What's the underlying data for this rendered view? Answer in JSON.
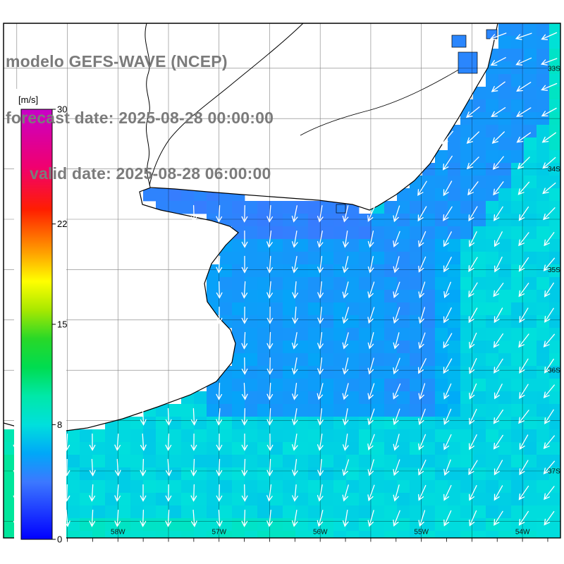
{
  "header": {
    "title": "modelo GEFS-WAVE (NCEP)",
    "forecast_line": "forecast date: 2025-08-28 00:00:00",
    "valid_line": "valid date: 2025-08-28 06:00:00",
    "text_color": "#7b7b7b"
  },
  "colorbar": {
    "unit_label": "[m/s]",
    "min": 0,
    "max": 30,
    "ticks": [
      {
        "value": 30,
        "label": "30"
      },
      {
        "value": 22,
        "label": "22"
      },
      {
        "value": 15,
        "label": "15"
      },
      {
        "value": 8,
        "label": "8"
      },
      {
        "value": 0,
        "label": "0"
      }
    ],
    "stops": [
      {
        "v": 0,
        "c": "#0000ff"
      },
      {
        "v": 4,
        "c": "#3c78ff"
      },
      {
        "v": 6,
        "c": "#00a8f8"
      },
      {
        "v": 8,
        "c": "#00e0dc"
      },
      {
        "v": 10,
        "c": "#00e8a8"
      },
      {
        "v": 12,
        "c": "#00dc50"
      },
      {
        "v": 14,
        "c": "#28d828"
      },
      {
        "v": 16,
        "c": "#a8e800"
      },
      {
        "v": 18,
        "c": "#ffff00"
      },
      {
        "v": 20,
        "c": "#ffa000"
      },
      {
        "v": 23,
        "c": "#ff1e00"
      },
      {
        "v": 26,
        "c": "#f00070"
      },
      {
        "v": 30,
        "c": "#c800c8"
      }
    ]
  },
  "map": {
    "right_axis_labels": [
      "33S",
      "34S",
      "35S",
      "36S",
      "37S"
    ],
    "bottom_axis_labels": [
      "58W",
      "57W",
      "56W",
      "55W",
      "54W"
    ],
    "land_color": "#ffffff",
    "coast_color": "#000000",
    "grid_color": "#000000",
    "arrow_color": "#ffffff",
    "sea_state": {
      "base_value_ms": 7.6,
      "estuary_value_ms": 4.4,
      "nearshore_value_ms": 5.2,
      "offshore_blue_value_ms": 5.5,
      "southwest_green_value_ms": 9.5
    }
  }
}
